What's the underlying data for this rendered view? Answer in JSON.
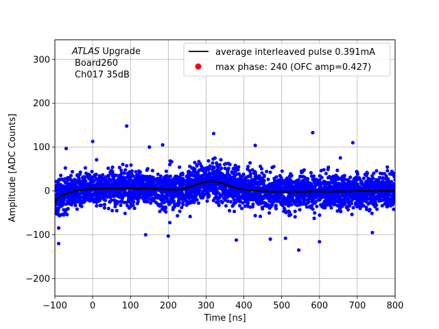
{
  "chart_data": {
    "type": "scatter",
    "title": "",
    "xlabel": "Time [ns]",
    "ylabel": "Amplitude [ADC Counts]",
    "xlim": [
      -100,
      800
    ],
    "ylim": [
      -240,
      345
    ],
    "xticks": [
      -100,
      0,
      100,
      200,
      300,
      400,
      500,
      600,
      700,
      800
    ],
    "yticks": [
      -200,
      -100,
      0,
      100,
      200,
      300
    ],
    "grid": true,
    "legend_position": "top-right",
    "colors": {
      "scatter": "#0000ff",
      "line": "#000000",
      "max_marker": "#ff0000",
      "grid": "#b0b0b0"
    },
    "annotation": {
      "experiment": "ATLAS",
      "experiment_suffix": " Upgrade",
      "board": "Board260",
      "channel": "Ch017 35dB"
    },
    "series": [
      {
        "name": "average interleaved pulse 0.391mA",
        "kind": "line",
        "x": [
          -100,
          -90,
          -80,
          -70,
          -60,
          -50,
          -40,
          -30,
          -20,
          -10,
          0,
          20,
          40,
          60,
          80,
          100,
          120,
          140,
          160,
          180,
          200,
          220,
          240,
          260,
          280,
          300,
          310,
          320,
          330,
          340,
          350,
          360,
          370,
          380,
          400,
          420,
          440,
          460,
          480,
          500,
          520,
          540,
          560,
          580,
          600,
          620,
          640,
          660,
          680,
          700,
          720,
          740,
          760,
          780,
          800
        ],
        "y": [
          -25,
          -15,
          -10,
          -6,
          -3,
          -1,
          1,
          2,
          3,
          4,
          5,
          5,
          6,
          5,
          6,
          6,
          5,
          6,
          5,
          4,
          3,
          3,
          5,
          10,
          16,
          21,
          22,
          22,
          20,
          18,
          15,
          12,
          9,
          6,
          3,
          1,
          0,
          -1,
          -2,
          -2,
          -2,
          -2,
          -2,
          -1,
          -1,
          -2,
          -1,
          -1,
          -1,
          0,
          0,
          -1,
          0,
          0,
          0
        ]
      },
      {
        "name": "max phase: 240 (OFC amp=0.427)",
        "kind": "marker",
        "x": [],
        "y": []
      },
      {
        "name": "samples",
        "kind": "scatter",
        "noise_sigma_adc": 20,
        "x_range": [
          -100,
          800
        ],
        "outliers": [
          {
            "x": 90,
            "y": 148
          },
          {
            "x": 582,
            "y": 133
          },
          {
            "x": 320,
            "y": 131
          },
          {
            "x": 0,
            "y": 113
          },
          {
            "x": 185,
            "y": 105
          },
          {
            "x": 688,
            "y": 110
          },
          {
            "x": -70,
            "y": 97
          },
          {
            "x": 430,
            "y": 104
          },
          {
            "x": 150,
            "y": 100
          },
          {
            "x": 545,
            "y": -135
          },
          {
            "x": -90,
            "y": -120
          },
          {
            "x": 470,
            "y": -110
          },
          {
            "x": 510,
            "y": -108
          },
          {
            "x": 600,
            "y": -116
          },
          {
            "x": 740,
            "y": -95
          },
          {
            "x": 380,
            "y": -112
          },
          {
            "x": 200,
            "y": -103
          },
          {
            "x": 140,
            "y": -100
          }
        ]
      }
    ]
  }
}
